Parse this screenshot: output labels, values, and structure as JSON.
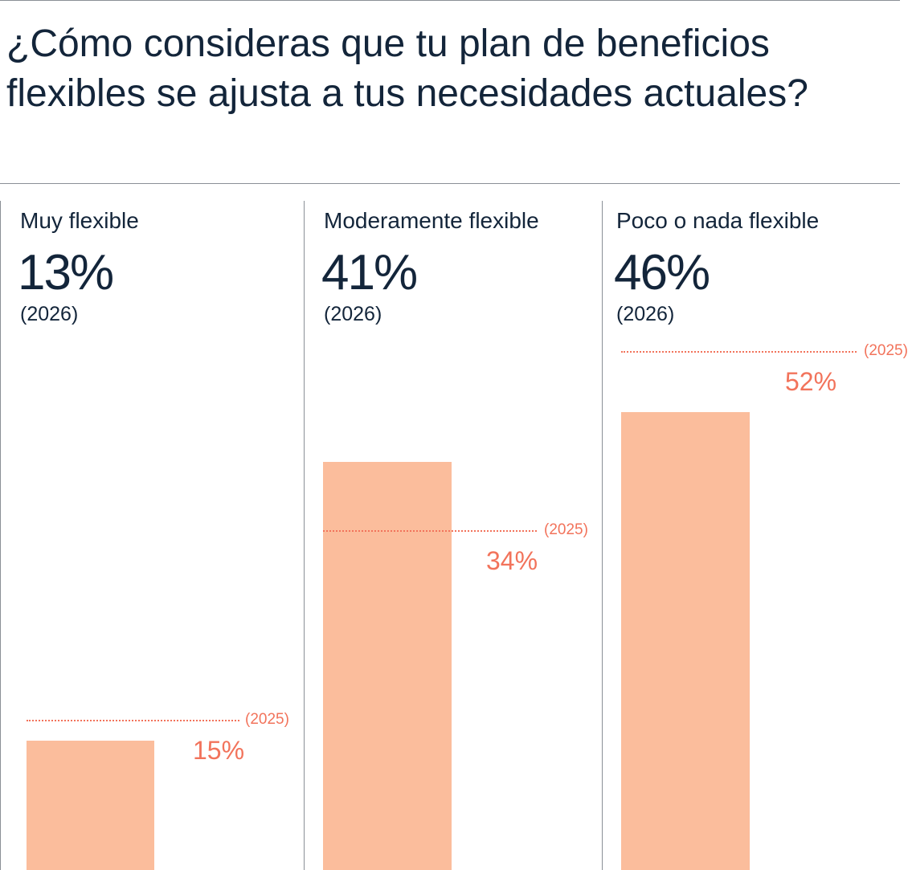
{
  "header": {
    "title": "¿Cómo consideras que tu plan de beneficios flexibles se ajusta a tus necesidades actuales?"
  },
  "colors": {
    "bar_2026": "#fbbd9c",
    "reference_2025": "#f2735b",
    "text": "#13253a",
    "rules": "#8a8f96"
  },
  "chart_data": {
    "type": "bar",
    "title": "¿Cómo consideras que tu plan de beneficios flexibles se ajusta a tus necesidades actuales?",
    "categories": [
      "Muy flexible",
      "Moderamente flexible",
      "Poco o nada flexible"
    ],
    "series": [
      {
        "name": "2026",
        "values": [
          13,
          41,
          46
        ]
      },
      {
        "name": "2025",
        "values": [
          15,
          34,
          52
        ],
        "style": "dotted reference line"
      }
    ],
    "value_labels": [
      "13%",
      "41%",
      "46%"
    ],
    "year_labels": [
      "(2026)",
      "(2026)",
      "(2026)"
    ],
    "reference_year_labels": [
      "(2025)",
      "(2025)",
      "(2025)"
    ],
    "reference_value_labels": [
      "15%",
      "34%",
      "52%"
    ],
    "unit": "%",
    "ylim": [
      0,
      65
    ],
    "xlabel": "",
    "ylabel": ""
  }
}
